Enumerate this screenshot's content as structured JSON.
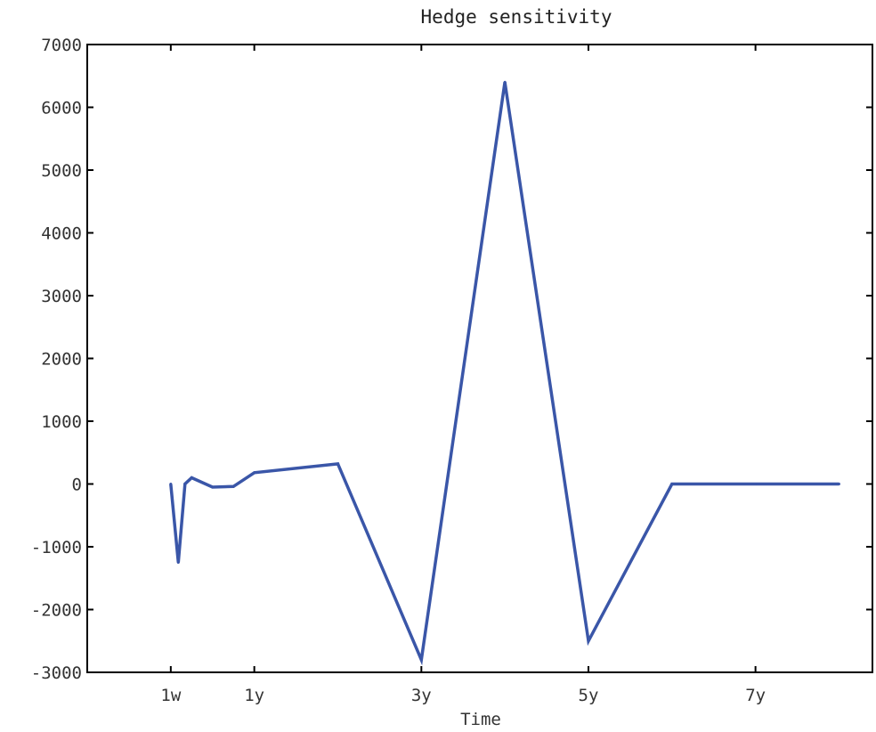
{
  "chart_data": {
    "type": "line",
    "title": "Hedge sensitivity",
    "xlabel": "Time",
    "ylabel": "",
    "xlim": [
      0,
      9.4
    ],
    "ylim": [
      -3000,
      7000
    ],
    "grid": false,
    "x_ticks": [
      {
        "x": 1,
        "label": "1w"
      },
      {
        "x": 2,
        "label": "1y"
      },
      {
        "x": 4,
        "label": "3y"
      },
      {
        "x": 6,
        "label": "5y"
      },
      {
        "x": 8,
        "label": "7y"
      }
    ],
    "y_ticks": [
      -3000,
      -2000,
      -1000,
      0,
      1000,
      2000,
      3000,
      4000,
      5000,
      6000,
      7000
    ],
    "series": [
      {
        "color": "#3a56a8",
        "points": [
          {
            "x": 1.0,
            "y": 0
          },
          {
            "x": 1.09,
            "y": -1250
          },
          {
            "x": 1.17,
            "y": 0
          },
          {
            "x": 1.25,
            "y": 100
          },
          {
            "x": 1.5,
            "y": -50
          },
          {
            "x": 1.75,
            "y": -40
          },
          {
            "x": 2.0,
            "y": 180
          },
          {
            "x": 3.0,
            "y": 320
          },
          {
            "x": 4.0,
            "y": -2800
          },
          {
            "x": 5.0,
            "y": 6400
          },
          {
            "x": 6.0,
            "y": -2500
          },
          {
            "x": 7.0,
            "y": 0
          },
          {
            "x": 8.0,
            "y": 0
          },
          {
            "x": 9.0,
            "y": 0
          }
        ]
      }
    ]
  }
}
